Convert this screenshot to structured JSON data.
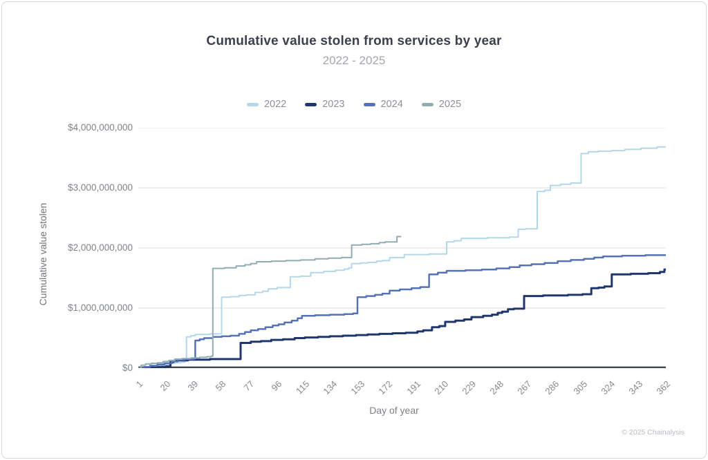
{
  "page": {
    "title": "Cumulative value stolen from services by year",
    "subtitle": "2022 - 2025",
    "footer": "© 2025 Chainalysis"
  },
  "colors": {
    "grid": "#dcdcdc",
    "axis_baseline": "#41454e",
    "year_2022": "#b3d7e8",
    "year_2023": "#20376d",
    "year_2024": "#5472b4",
    "year_2025": "#90acb3"
  },
  "chart_data": {
    "type": "line",
    "variant": "step-after",
    "title": "Cumulative value stolen from services by year",
    "subtitle": "2022 - 2025",
    "xlabel": "Day of year",
    "ylabel": "Cumulative value stolen",
    "legend_position": "top",
    "grid": "horizontal",
    "xlim": [
      1,
      362
    ],
    "x_ticks": [
      1,
      20,
      39,
      58,
      77,
      96,
      115,
      134,
      153,
      172,
      191,
      210,
      229,
      248,
      267,
      286,
      305,
      324,
      343,
      362
    ],
    "ylim_usd": [
      0,
      4000000000
    ],
    "ymax_billions": 4,
    "y_ticks": [
      {
        "value_billions": 0,
        "label": "$0"
      },
      {
        "value_billions": 1,
        "label": "$1,000,000,000"
      },
      {
        "value_billions": 2,
        "label": "$2,000,000,000"
      },
      {
        "value_billions": 3,
        "label": "$3,000,000,000"
      },
      {
        "value_billions": 4,
        "label": "$4,000,000,000"
      }
    ],
    "series": [
      {
        "name": "2022",
        "color": "#b3d7e8",
        "stroke_width": 2,
        "points_day_valueBillions": [
          [
            1,
            0
          ],
          [
            6,
            0.01
          ],
          [
            12,
            0.03
          ],
          [
            17,
            0.05
          ],
          [
            20,
            0.06
          ],
          [
            23,
            0.08
          ],
          [
            26,
            0.09
          ],
          [
            30,
            0.1
          ],
          [
            33,
            0.12
          ],
          [
            34,
            0.52
          ],
          [
            37,
            0.54
          ],
          [
            40,
            0.56
          ],
          [
            50,
            0.57
          ],
          [
            57,
            0.57
          ],
          [
            58,
            1.18
          ],
          [
            64,
            1.19
          ],
          [
            70,
            1.21
          ],
          [
            75,
            1.22
          ],
          [
            81,
            1.26
          ],
          [
            86,
            1.28
          ],
          [
            90,
            1.32
          ],
          [
            96,
            1.34
          ],
          [
            105,
            1.52
          ],
          [
            112,
            1.53
          ],
          [
            119,
            1.59
          ],
          [
            128,
            1.61
          ],
          [
            136,
            1.63
          ],
          [
            142,
            1.65
          ],
          [
            145,
            1.67
          ],
          [
            147,
            1.74
          ],
          [
            153,
            1.75
          ],
          [
            158,
            1.76
          ],
          [
            164,
            1.78
          ],
          [
            168,
            1.79
          ],
          [
            173,
            1.84
          ],
          [
            183,
            1.89
          ],
          [
            200,
            1.9
          ],
          [
            212,
            2.1
          ],
          [
            217,
            2.12
          ],
          [
            222,
            2.16
          ],
          [
            240,
            2.17
          ],
          [
            255,
            2.18
          ],
          [
            261,
            2.31
          ],
          [
            266,
            2.32
          ],
          [
            274,
            2.94
          ],
          [
            279,
            2.96
          ],
          [
            283,
            3.04
          ],
          [
            290,
            3.06
          ],
          [
            297,
            3.08
          ],
          [
            304,
            3.57
          ],
          [
            309,
            3.6
          ],
          [
            316,
            3.61
          ],
          [
            325,
            3.62
          ],
          [
            334,
            3.64
          ],
          [
            345,
            3.66
          ],
          [
            356,
            3.68
          ],
          [
            362,
            3.69
          ]
        ]
      },
      {
        "name": "2023",
        "color": "#20376d",
        "stroke_width": 3,
        "points_day_valueBillions": [
          [
            1,
            0
          ],
          [
            8,
            0.01
          ],
          [
            15,
            0.02
          ],
          [
            20,
            0.03
          ],
          [
            23,
            0.1
          ],
          [
            25,
            0.12
          ],
          [
            28,
            0.13
          ],
          [
            35,
            0.14
          ],
          [
            50,
            0.15
          ],
          [
            60,
            0.15
          ],
          [
            71,
            0.42
          ],
          [
            78,
            0.44
          ],
          [
            85,
            0.45
          ],
          [
            92,
            0.47
          ],
          [
            100,
            0.48
          ],
          [
            108,
            0.5
          ],
          [
            115,
            0.51
          ],
          [
            124,
            0.52
          ],
          [
            132,
            0.53
          ],
          [
            141,
            0.54
          ],
          [
            150,
            0.55
          ],
          [
            158,
            0.56
          ],
          [
            166,
            0.57
          ],
          [
            175,
            0.58
          ],
          [
            184,
            0.59
          ],
          [
            192,
            0.61
          ],
          [
            196,
            0.63
          ],
          [
            202,
            0.68
          ],
          [
            207,
            0.7
          ],
          [
            211,
            0.77
          ],
          [
            218,
            0.79
          ],
          [
            224,
            0.81
          ],
          [
            229,
            0.85
          ],
          [
            237,
            0.87
          ],
          [
            243,
            0.89
          ],
          [
            247,
            0.92
          ],
          [
            250,
            0.94
          ],
          [
            254,
            0.98
          ],
          [
            258,
            0.99
          ],
          [
            265,
            1.2
          ],
          [
            278,
            1.21
          ],
          [
            295,
            1.22
          ],
          [
            305,
            1.23
          ],
          [
            311,
            1.33
          ],
          [
            316,
            1.34
          ],
          [
            320,
            1.36
          ],
          [
            325,
            1.56
          ],
          [
            338,
            1.57
          ],
          [
            350,
            1.58
          ],
          [
            358,
            1.6
          ],
          [
            361,
            1.64
          ],
          [
            362,
            1.65
          ]
        ]
      },
      {
        "name": "2024",
        "color": "#5472b4",
        "stroke_width": 2.5,
        "points_day_valueBillions": [
          [
            1,
            0
          ],
          [
            5,
            0.02
          ],
          [
            9,
            0.04
          ],
          [
            14,
            0.06
          ],
          [
            19,
            0.08
          ],
          [
            24,
            0.11
          ],
          [
            28,
            0.14
          ],
          [
            33,
            0.15
          ],
          [
            39,
            0.16
          ],
          [
            40,
            0.46
          ],
          [
            43,
            0.48
          ],
          [
            46,
            0.5
          ],
          [
            52,
            0.52
          ],
          [
            58,
            0.53
          ],
          [
            64,
            0.54
          ],
          [
            70,
            0.57
          ],
          [
            74,
            0.6
          ],
          [
            78,
            0.63
          ],
          [
            83,
            0.65
          ],
          [
            88,
            0.68
          ],
          [
            93,
            0.71
          ],
          [
            97,
            0.73
          ],
          [
            101,
            0.76
          ],
          [
            106,
            0.79
          ],
          [
            110,
            0.83
          ],
          [
            113,
            0.87
          ],
          [
            122,
            0.88
          ],
          [
            132,
            0.89
          ],
          [
            142,
            0.9
          ],
          [
            148,
            0.91
          ],
          [
            151,
            1.18
          ],
          [
            157,
            1.2
          ],
          [
            163,
            1.22
          ],
          [
            168,
            1.24
          ],
          [
            173,
            1.29
          ],
          [
            180,
            1.31
          ],
          [
            188,
            1.33
          ],
          [
            194,
            1.35
          ],
          [
            200,
            1.56
          ],
          [
            206,
            1.59
          ],
          [
            212,
            1.62
          ],
          [
            225,
            1.63
          ],
          [
            236,
            1.64
          ],
          [
            246,
            1.66
          ],
          [
            255,
            1.68
          ],
          [
            262,
            1.71
          ],
          [
            270,
            1.73
          ],
          [
            279,
            1.75
          ],
          [
            288,
            1.78
          ],
          [
            297,
            1.8
          ],
          [
            306,
            1.82
          ],
          [
            313,
            1.84
          ],
          [
            319,
            1.86
          ],
          [
            332,
            1.87
          ],
          [
            348,
            1.88
          ],
          [
            362,
            1.88
          ]
        ]
      },
      {
        "name": "2025",
        "color": "#90acb3",
        "stroke_width": 2,
        "points_day_valueBillions": [
          [
            1,
            0
          ],
          [
            3,
            0.05
          ],
          [
            6,
            0.07
          ],
          [
            10,
            0.08
          ],
          [
            14,
            0.09
          ],
          [
            18,
            0.11
          ],
          [
            22,
            0.13
          ],
          [
            26,
            0.15
          ],
          [
            31,
            0.16
          ],
          [
            37,
            0.17
          ],
          [
            43,
            0.18
          ],
          [
            48,
            0.19
          ],
          [
            51,
            0.2
          ],
          [
            52,
            1.66
          ],
          [
            60,
            1.67
          ],
          [
            68,
            1.7
          ],
          [
            74,
            1.72
          ],
          [
            78,
            1.74
          ],
          [
            82,
            1.77
          ],
          [
            92,
            1.78
          ],
          [
            102,
            1.79
          ],
          [
            112,
            1.8
          ],
          [
            122,
            1.82
          ],
          [
            131,
            1.83
          ],
          [
            140,
            1.84
          ],
          [
            147,
            2.05
          ],
          [
            154,
            2.06
          ],
          [
            160,
            2.07
          ],
          [
            166,
            2.09
          ],
          [
            170,
            2.1
          ],
          [
            178,
            2.19
          ],
          [
            181,
            2.19
          ]
        ]
      }
    ]
  }
}
